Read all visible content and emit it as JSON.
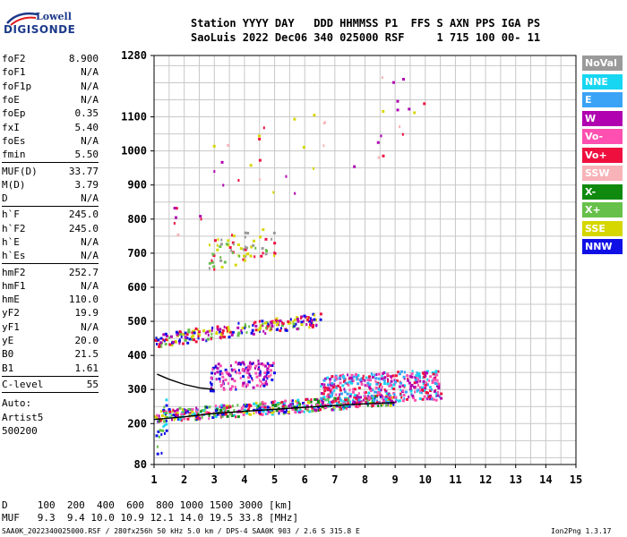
{
  "logo": {
    "line1": "Lowell",
    "line2": "DIGISONDE"
  },
  "header": {
    "line1": "Station YYYY DAY   DDD HHMMSS P1  FFS S AXN PPS IGA PS",
    "line2": "SaoLuis 2022 Dec06 340 025000 RSF     1 715 100 00- 11"
  },
  "params_group1": [
    {
      "name": "foF2",
      "value": "8.900"
    },
    {
      "name": "foF1",
      "value": "N/A"
    },
    {
      "name": "foF1p",
      "value": "N/A"
    },
    {
      "name": "foE",
      "value": "N/A"
    },
    {
      "name": "foEp",
      "value": "0.35"
    },
    {
      "name": "fxI",
      "value": "5.40"
    },
    {
      "name": "foEs",
      "value": "N/A"
    },
    {
      "name": "fmin",
      "value": "5.50"
    }
  ],
  "params_group2": [
    {
      "name": "MUF(D)",
      "value": "33.77"
    },
    {
      "name": "M(D)",
      "value": "3.79"
    },
    {
      "name": "D",
      "value": "N/A"
    }
  ],
  "params_group3": [
    {
      "name": "h`F",
      "value": "245.0"
    },
    {
      "name": "h`F2",
      "value": "245.0"
    },
    {
      "name": "h`E",
      "value": "N/A"
    },
    {
      "name": "h`Es",
      "value": "N/A"
    }
  ],
  "params_group4": [
    {
      "name": "hmF2",
      "value": "252.7"
    },
    {
      "name": "hmF1",
      "value": "N/A"
    },
    {
      "name": "hmE",
      "value": "110.0"
    },
    {
      "name": "yF2",
      "value": "19.9"
    },
    {
      "name": "yF1",
      "value": "N/A"
    },
    {
      "name": "yE",
      "value": "20.0"
    },
    {
      "name": "B0",
      "value": "21.5"
    },
    {
      "name": "B1",
      "value": "1.61"
    }
  ],
  "params_group5": [
    {
      "name": "C-level",
      "value": "55"
    }
  ],
  "auto_lines": [
    "Auto:",
    "Artist5",
    "500200"
  ],
  "legend": [
    {
      "label": "NoVal",
      "color": "#9a9a9a"
    },
    {
      "label": "NNE",
      "color": "#17d6f2"
    },
    {
      "label": "E",
      "color": "#3aa3f5"
    },
    {
      "label": "W",
      "color": "#b000b0"
    },
    {
      "label": "Vo-",
      "color": "#ff4fb0"
    },
    {
      "label": "Vo+",
      "color": "#ef0f3f"
    },
    {
      "label": "SSW",
      "color": "#f7b3b8"
    },
    {
      "label": "X-",
      "color": "#0f8a0f"
    },
    {
      "label": "X+",
      "color": "#67c04a"
    },
    {
      "label": "SSE",
      "color": "#d6d600"
    },
    {
      "label": "NNW",
      "color": "#1010e6"
    }
  ],
  "footer": {
    "line1": "D     100  200  400  600  800 1000 1500 3000 [km]",
    "line2": "MUF   9.3  9.4 10.0 10.9 12.1 14.0 19.5 33.8 [MHz]",
    "line3": "SAA0K_2022340025000.RSF / 280fx256h 50 kHz 5.0 km / DPS-4 SAA0K 903 / 2.6 S 315.8 E",
    "version": "Ion2Png 1.3.17"
  },
  "chart_data": {
    "type": "scatter",
    "title": "",
    "xlabel": "",
    "ylabel": "",
    "xlim": [
      1,
      15
    ],
    "ylim": [
      80,
      1280
    ],
    "xticks": [
      1,
      2,
      3,
      4,
      5,
      6,
      7,
      8,
      9,
      10,
      11,
      12,
      13,
      14,
      15
    ],
    "yticks": [
      80,
      200,
      300,
      400,
      500,
      600,
      700,
      800,
      900,
      1000,
      1100,
      1280
    ],
    "grid": true,
    "traces": [
      {
        "name": "trace-F2-virtual",
        "color": "#000000",
        "x": [
          1.0,
          2.0,
          3.0,
          4.0,
          5.0,
          6.0,
          7.0,
          8.0,
          9.0
        ],
        "y": [
          212,
          220,
          230,
          236,
          242,
          248,
          253,
          258,
          262
        ]
      },
      {
        "name": "trace-F2-upper",
        "color": "#000000",
        "x": [
          1.1,
          1.5,
          2.0,
          2.5,
          3.0
        ],
        "y": [
          345,
          330,
          315,
          305,
          300
        ]
      }
    ],
    "scatter_regions": [
      {
        "x": [
          1.0,
          9.0
        ],
        "y_start": [
          218,
          268
        ],
        "spread": 38,
        "n": 520,
        "colors": [
          "#1010e6",
          "#ef0f3f",
          "#b000b0",
          "#d6d600",
          "#0f8a0f",
          "#17d6f2",
          "#67c04a",
          "#ff4fb0"
        ]
      },
      {
        "x": [
          6.5,
          10.5
        ],
        "y_start": [
          280,
          300
        ],
        "spread": 90,
        "n": 420,
        "colors": [
          "#3aa3f5",
          "#ef0f3f",
          "#ff4fb0",
          "#17d6f2",
          "#b000b0"
        ]
      },
      {
        "x": [
          1.0,
          6.5
        ],
        "y_start": [
          440,
          500
        ],
        "spread": 40,
        "n": 230,
        "colors": [
          "#d6d600",
          "#1010e6",
          "#67c04a",
          "#b000b0",
          "#ef0f3f"
        ]
      },
      {
        "x": [
          2.8,
          5.0
        ],
        "y_start": [
          320,
          340
        ],
        "spread": 80,
        "n": 150,
        "colors": [
          "#b000b0",
          "#ff4fb0",
          "#1010e6"
        ]
      },
      {
        "x": [
          2.8,
          5.0
        ],
        "y_start": [
          680,
          720
        ],
        "spread": 90,
        "n": 70,
        "colors": [
          "#9a9a9a",
          "#d6d600",
          "#67c04a",
          "#ef0f3f"
        ]
      },
      {
        "x": [
          1.6,
          10.0
        ],
        "y_start": [
          800,
          1100
        ],
        "spread": 250,
        "n": 45,
        "colors": [
          "#ef0f3f",
          "#b000b0",
          "#f7b3b8",
          "#d6d600"
        ]
      },
      {
        "x": [
          1.0,
          1.4
        ],
        "y_start": [
          80,
          200
        ],
        "spread": 120,
        "n": 25,
        "colors": [
          "#1010e6",
          "#17d6f2",
          "#67c04a"
        ]
      }
    ]
  }
}
